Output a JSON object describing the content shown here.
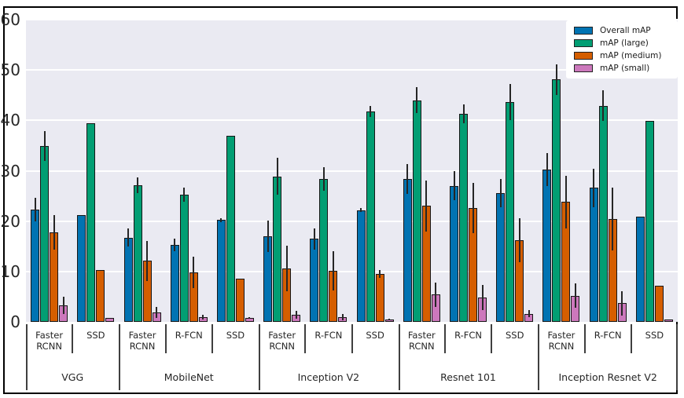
{
  "chart_data": {
    "type": "bar",
    "title": "",
    "xlabel": "",
    "ylabel": "",
    "ylim": [
      0,
      60
    ],
    "yticks": [
      0,
      10,
      20,
      30,
      40,
      50,
      60
    ],
    "grid": true,
    "legend_position": "upper right",
    "plot_bg_color": "#eaeaf2",
    "grid_color": "#ffffff",
    "bar_edge_color": "#161616",
    "error_bar_color": "#262626",
    "series": [
      {
        "name": "Overall mAP",
        "color": "#0173b2"
      },
      {
        "name": "mAP (large)",
        "color": "#029e73"
      },
      {
        "name": "mAP (medium)",
        "color": "#d55e00"
      },
      {
        "name": "mAP (small)",
        "color": "#cc78bc"
      }
    ],
    "groups": [
      {
        "label": "VGG",
        "models": [
          {
            "label": "Faster RCNN",
            "values": [
              22.3,
              34.9,
              17.8,
              3.3
            ],
            "errors": [
              2.3,
              3.0,
              3.4,
              1.7
            ]
          },
          {
            "label": "SSD",
            "values": [
              21.2,
              39.5,
              10.3,
              0.8
            ],
            "errors": [
              0,
              0,
              0,
              0
            ]
          }
        ]
      },
      {
        "label": "MobileNet",
        "models": [
          {
            "label": "Faster RCNN",
            "values": [
              16.7,
              27.1,
              12.1,
              1.9
            ],
            "errors": [
              1.8,
              1.6,
              4.0,
              1.1
            ]
          },
          {
            "label": "R-FCN",
            "values": [
              15.3,
              25.2,
              9.8,
              0.9
            ],
            "errors": [
              1.2,
              1.4,
              3.1,
              0.5
            ]
          },
          {
            "label": "SSD",
            "values": [
              20.2,
              37.0,
              8.6,
              0.8
            ],
            "errors": [
              0.4,
              0,
              0,
              0.2
            ]
          }
        ]
      },
      {
        "label": "Inception V2",
        "models": [
          {
            "label": "Faster RCNN",
            "values": [
              17.0,
              28.9,
              10.6,
              1.4
            ],
            "errors": [
              3.1,
              3.6,
              4.5,
              0.8
            ]
          },
          {
            "label": "R-FCN",
            "values": [
              16.5,
              28.4,
              10.1,
              0.9
            ],
            "errors": [
              2.1,
              2.3,
              3.9,
              0.6
            ]
          },
          {
            "label": "SSD",
            "values": [
              22.2,
              41.7,
              9.5,
              0.5
            ],
            "errors": [
              0.4,
              1.1,
              0.8,
              0.2
            ]
          }
        ]
      },
      {
        "label": "Resnet 101",
        "models": [
          {
            "label": "Faster RCNN",
            "values": [
              28.4,
              44.0,
              23.0,
              5.4
            ],
            "errors": [
              3.0,
              2.6,
              5.0,
              2.4
            ]
          },
          {
            "label": "R-FCN",
            "values": [
              27.0,
              41.3,
              22.6,
              4.9
            ],
            "errors": [
              2.9,
              1.9,
              5.0,
              2.5
            ]
          },
          {
            "label": "SSD",
            "values": [
              25.5,
              43.7,
              16.2,
              1.6
            ],
            "errors": [
              2.8,
              3.6,
              4.4,
              0.7
            ]
          }
        ]
      },
      {
        "label": "Inception Resnet V2",
        "models": [
          {
            "label": "Faster RCNN",
            "values": [
              30.2,
              48.1,
              23.8,
              5.2
            ],
            "errors": [
              3.3,
              3.0,
              5.2,
              2.4
            ]
          },
          {
            "label": "R-FCN",
            "values": [
              26.6,
              42.9,
              20.4,
              3.7
            ],
            "errors": [
              3.8,
              3.0,
              6.2,
              2.4
            ]
          },
          {
            "label": "SSD",
            "values": [
              20.9,
              39.9,
              7.2,
              0.5
            ],
            "errors": [
              0,
              0,
              0,
              0
            ]
          }
        ]
      }
    ]
  }
}
